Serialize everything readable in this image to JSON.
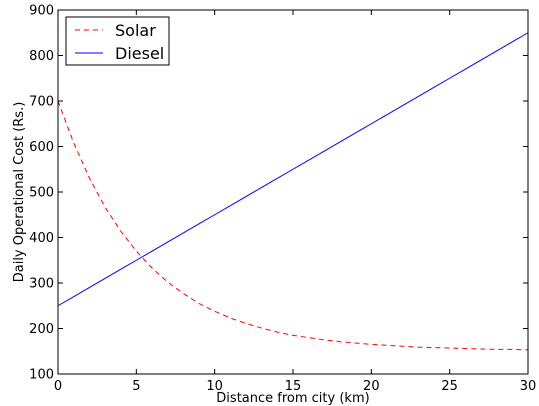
{
  "chart_data": {
    "type": "line",
    "title": "",
    "xlabel": "Distance from city (km)",
    "ylabel": "Daily Operational Cost (Rs.)",
    "xlim": [
      0,
      30
    ],
    "ylim": [
      100,
      900
    ],
    "xticks": [
      0,
      5,
      10,
      15,
      20,
      25,
      30
    ],
    "yticks": [
      100,
      200,
      300,
      400,
      500,
      600,
      700,
      800,
      900
    ],
    "grid": false,
    "legend_position": "top-left",
    "x": [
      0,
      1,
      2,
      3,
      4,
      5,
      6,
      7,
      8,
      9,
      10,
      11,
      12,
      13,
      14,
      15,
      16,
      17,
      18,
      19,
      20,
      21,
      22,
      23,
      24,
      25,
      26,
      27,
      28,
      29,
      30
    ],
    "series": [
      {
        "name": "Solar",
        "color": "#ff0000",
        "style": "dashed",
        "values": [
          700,
          608,
          531,
          467,
          414,
          370,
          333,
          302,
          277,
          255,
          238,
          223,
          211,
          201,
          192,
          185,
          180,
          175,
          171,
          168,
          165,
          163,
          161,
          159,
          158,
          157,
          156,
          155,
          154,
          154,
          153
        ]
      },
      {
        "name": "Diesel",
        "color": "#0000ff",
        "style": "solid",
        "values": [
          250,
          270,
          290,
          310,
          330,
          350,
          370,
          390,
          410,
          430,
          450,
          470,
          490,
          510,
          530,
          550,
          570,
          590,
          610,
          630,
          650,
          670,
          690,
          710,
          730,
          750,
          770,
          790,
          810,
          830,
          850
        ]
      }
    ]
  }
}
